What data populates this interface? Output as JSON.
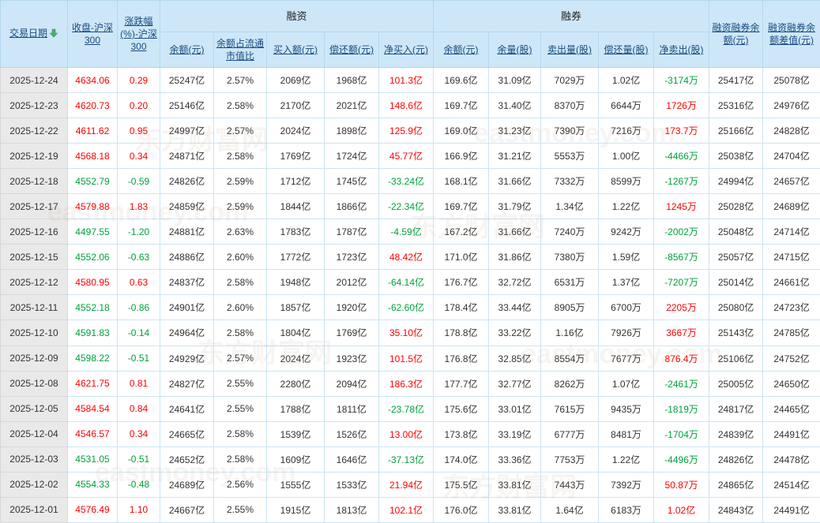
{
  "table": {
    "header": {
      "date": "交易日期",
      "close": "收盘-沪深300",
      "chg": "涨跌幅(%)-沪深300",
      "group_rz": "融资",
      "group_rq": "融券",
      "rz_balance": "余额(元)",
      "rz_ratio": "余额占流通市值比",
      "rz_buy": "买入额(元)",
      "rz_repay": "偿还额(元)",
      "rz_net": "净买入(元)",
      "rq_balance": "余额(元)",
      "rq_volume": "余量(股)",
      "rq_sell": "卖出量(股)",
      "rq_repay": "偿还量(股)",
      "rq_net": "净卖出(股)",
      "total": "融资融券余额(元)",
      "diff": "融资融券余额差值(元)"
    },
    "column_keys": [
      "date",
      "close",
      "chg",
      "rz_balance",
      "rz_ratio",
      "rz_buy",
      "rz_repay",
      "rz_net",
      "rq_balance",
      "rq_volume",
      "rq_sell",
      "rq_repay",
      "rq_net",
      "total",
      "diff"
    ],
    "color_rules": {
      "close": "by_chg",
      "chg": "by_chg",
      "rz_net": "by_sign",
      "rq_net": "by_sign"
    },
    "rows": [
      [
        "2025-12-24",
        "4634.06",
        "0.29",
        "25247亿",
        "2.57%",
        "2069亿",
        "1968亿",
        "101.3亿",
        "169.6亿",
        "31.09亿",
        "7029万",
        "1.02亿",
        "-3174万",
        "25417亿",
        "25078亿"
      ],
      [
        "2025-12-23",
        "4620.73",
        "0.20",
        "25146亿",
        "2.58%",
        "2170亿",
        "2021亿",
        "148.6亿",
        "169.7亿",
        "31.40亿",
        "8370万",
        "6644万",
        "1726万",
        "25316亿",
        "24976亿"
      ],
      [
        "2025-12-22",
        "4611.62",
        "0.95",
        "24997亿",
        "2.57%",
        "2024亿",
        "1898亿",
        "125.9亿",
        "169.0亿",
        "31.23亿",
        "7390万",
        "7216万",
        "173.7万",
        "25166亿",
        "24828亿"
      ],
      [
        "2025-12-19",
        "4568.18",
        "0.34",
        "24871亿",
        "2.58%",
        "1769亿",
        "1724亿",
        "45.77亿",
        "166.9亿",
        "31.21亿",
        "5553万",
        "1.00亿",
        "-4466万",
        "25038亿",
        "24704亿"
      ],
      [
        "2025-12-18",
        "4552.79",
        "-0.59",
        "24826亿",
        "2.59%",
        "1712亿",
        "1745亿",
        "-33.24亿",
        "168.1亿",
        "31.66亿",
        "7332万",
        "8599万",
        "-1267万",
        "24994亿",
        "24657亿"
      ],
      [
        "2025-12-17",
        "4579.88",
        "1.83",
        "24859亿",
        "2.59%",
        "1844亿",
        "1866亿",
        "-22.34亿",
        "169.7亿",
        "31.79亿",
        "1.34亿",
        "1.22亿",
        "1245万",
        "25028亿",
        "24689亿"
      ],
      [
        "2025-12-16",
        "4497.55",
        "-1.20",
        "24881亿",
        "2.63%",
        "1783亿",
        "1787亿",
        "-4.59亿",
        "167.2亿",
        "31.66亿",
        "7240万",
        "9242万",
        "-2002万",
        "25048亿",
        "24714亿"
      ],
      [
        "2025-12-15",
        "4552.06",
        "-0.63",
        "24886亿",
        "2.60%",
        "1772亿",
        "1723亿",
        "48.42亿",
        "171.0亿",
        "31.86亿",
        "7380万",
        "1.59亿",
        "-8567万",
        "25057亿",
        "24715亿"
      ],
      [
        "2025-12-12",
        "4580.95",
        "0.63",
        "24837亿",
        "2.58%",
        "1948亿",
        "2012亿",
        "-64.14亿",
        "176.7亿",
        "32.72亿",
        "6531万",
        "1.37亿",
        "-7207万",
        "25014亿",
        "24661亿"
      ],
      [
        "2025-12-11",
        "4552.18",
        "-0.86",
        "24901亿",
        "2.60%",
        "1857亿",
        "1920亿",
        "-62.60亿",
        "178.4亿",
        "33.44亿",
        "8905万",
        "6700万",
        "2205万",
        "25080亿",
        "24723亿"
      ],
      [
        "2025-12-10",
        "4591.83",
        "-0.14",
        "24964亿",
        "2.58%",
        "1804亿",
        "1769亿",
        "35.10亿",
        "178.8亿",
        "33.22亿",
        "1.16亿",
        "7926万",
        "3667万",
        "25143亿",
        "24785亿"
      ],
      [
        "2025-12-09",
        "4598.22",
        "-0.51",
        "24929亿",
        "2.57%",
        "2024亿",
        "1923亿",
        "101.5亿",
        "176.8亿",
        "32.85亿",
        "8554万",
        "7677万",
        "876.4万",
        "25106亿",
        "24752亿"
      ],
      [
        "2025-12-08",
        "4621.75",
        "0.81",
        "24827亿",
        "2.55%",
        "2280亿",
        "2094亿",
        "186.3亿",
        "177.7亿",
        "32.77亿",
        "8262万",
        "1.07亿",
        "-2461万",
        "25005亿",
        "24650亿"
      ],
      [
        "2025-12-05",
        "4584.54",
        "0.84",
        "24641亿",
        "2.55%",
        "1788亿",
        "1811亿",
        "-23.78亿",
        "175.6亿",
        "33.01亿",
        "7615万",
        "9435万",
        "-1819万",
        "24817亿",
        "24465亿"
      ],
      [
        "2025-12-04",
        "4546.57",
        "0.34",
        "24665亿",
        "2.58%",
        "1539亿",
        "1526亿",
        "13.00亿",
        "173.8亿",
        "33.19亿",
        "6777万",
        "8481万",
        "-1704万",
        "24839亿",
        "24491亿"
      ],
      [
        "2025-12-03",
        "4531.05",
        "-0.51",
        "24652亿",
        "2.58%",
        "1609亿",
        "1646亿",
        "-37.13亿",
        "174.0亿",
        "33.36亿",
        "7753万",
        "1.22亿",
        "-4496万",
        "24826亿",
        "24478亿"
      ],
      [
        "2025-12-02",
        "4554.33",
        "-0.48",
        "24689亿",
        "2.56%",
        "1555亿",
        "1533亿",
        "21.94亿",
        "175.5亿",
        "33.81亿",
        "7443万",
        "7392万",
        "50.87万",
        "24865亿",
        "24514亿"
      ],
      [
        "2025-12-01",
        "4576.49",
        "1.10",
        "24667亿",
        "2.55%",
        "1915亿",
        "1813亿",
        "102.1亿",
        "176.0亿",
        "33.81亿",
        "1.64亿",
        "6183万",
        "1.02亿",
        "24843亿",
        "24491亿"
      ]
    ]
  },
  "colors": {
    "up": "#ff0000",
    "down": "#00a13b",
    "header_bg": "#cde7f8",
    "sort_arrow": "#4db06e"
  },
  "watermark": {
    "cn": "东方财富网",
    "en": "eastmoney.com"
  }
}
